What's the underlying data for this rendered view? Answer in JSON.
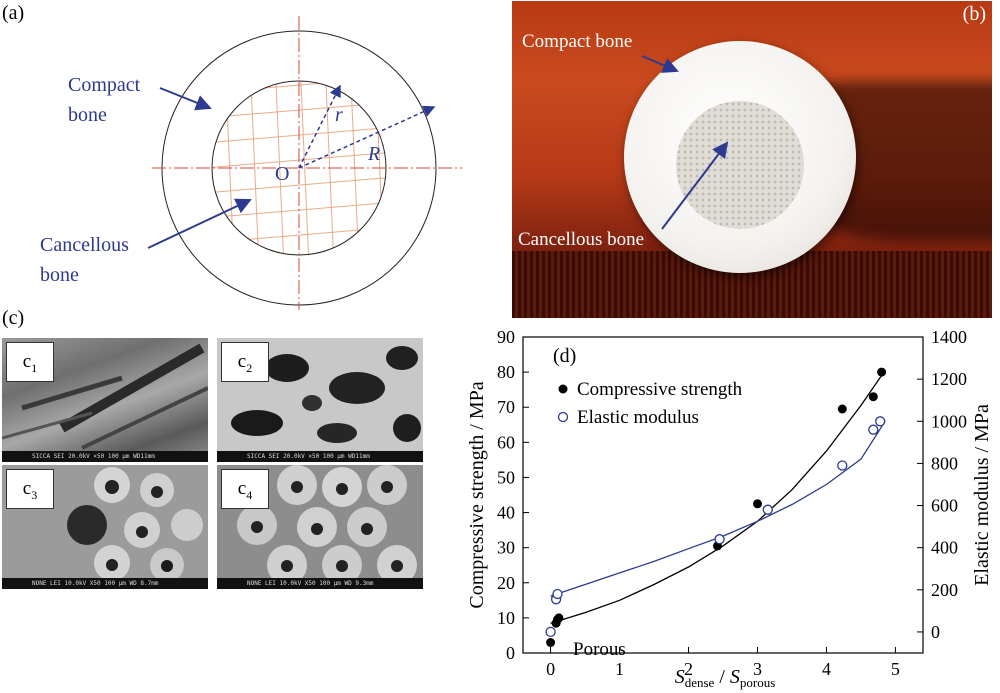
{
  "panels": {
    "a": {
      "label": "(a)",
      "compact": [
        "Compact",
        "bone"
      ],
      "cancellous": [
        "Cancellous",
        "bone"
      ],
      "center": "O",
      "r": "r",
      "R": "R"
    },
    "b": {
      "label": "(b)",
      "compact": "Compact bone",
      "cancellous": "Cancellous bone"
    },
    "c": {
      "label": "(c)",
      "tiles": [
        {
          "tag": "c",
          "sub": "1",
          "bar": "SICCA SEI   20.0kV   ×50   100 μm   WD11mm"
        },
        {
          "tag": "c",
          "sub": "2",
          "bar": "SICCA SEI   20.0kV   ×50   100 μm   WD11mm"
        },
        {
          "tag": "c",
          "sub": "3",
          "bar": "NONE   LEI   10.0kV   X50   100 μm   WD 8.7mm"
        },
        {
          "tag": "c",
          "sub": "4",
          "bar": "NONE   LEI   10.0kV   X50   100 μm   WD 9.3mm"
        }
      ]
    },
    "d": {
      "label": "(d)",
      "annotation": "Porous"
    }
  },
  "chart_data": {
    "type": "scatter",
    "xlabel": "S_dense / S_porous",
    "xlabel_main": "S",
    "xlabel_sub1": "dense",
    "xlabel_sep": " / ",
    "xlabel_sub2": "porous",
    "ylabel_left": "Compressive strength / MPa",
    "ylabel_right": "Elastic modulus / MPa",
    "xlim": [
      -0.4,
      5.4
    ],
    "ylim_left": [
      0,
      90
    ],
    "ylim_right": [
      -100,
      1400
    ],
    "xticks": [
      0,
      1,
      2,
      3,
      4,
      5
    ],
    "yticks_left": [
      0,
      10,
      20,
      30,
      40,
      50,
      60,
      70,
      80,
      90
    ],
    "yticks_right": [
      0,
      200,
      400,
      600,
      800,
      1000,
      1200,
      1400
    ],
    "series": [
      {
        "name": "Compressive strength",
        "marker": "filled",
        "color": "#000000",
        "axis": "left",
        "x": [
          0.0,
          0.08,
          0.1,
          0.12,
          2.42,
          3.0,
          4.23,
          4.68,
          4.8
        ],
        "y": [
          3.0,
          8.5,
          9.5,
          10.0,
          30.5,
          42.5,
          69.5,
          73.0,
          80.0
        ],
        "fit": [
          [
            0,
            8.5
          ],
          [
            0.5,
            11.5
          ],
          [
            1,
            15.0
          ],
          [
            1.5,
            19.5
          ],
          [
            2,
            24.5
          ],
          [
            2.5,
            30.5
          ],
          [
            3,
            37.5
          ],
          [
            3.5,
            46.5
          ],
          [
            4,
            57.5
          ],
          [
            4.5,
            70.5
          ],
          [
            4.85,
            80.5
          ]
        ]
      },
      {
        "name": "Elastic modulus",
        "marker": "open",
        "color": "#2c3a8f",
        "axis": "right",
        "x": [
          0.0,
          0.08,
          0.1,
          2.45,
          3.15,
          4.23,
          4.68,
          4.78
        ],
        "y": [
          0,
          155,
          180,
          440,
          580,
          790,
          960,
          1000
        ],
        "fit": [
          [
            0,
            170
          ],
          [
            0.5,
            225
          ],
          [
            1,
            280
          ],
          [
            1.5,
            335
          ],
          [
            2,
            395
          ],
          [
            2.5,
            455
          ],
          [
            3,
            525
          ],
          [
            3.5,
            605
          ],
          [
            4,
            700
          ],
          [
            4.5,
            820
          ],
          [
            4.85,
            1000
          ]
        ]
      }
    ]
  }
}
